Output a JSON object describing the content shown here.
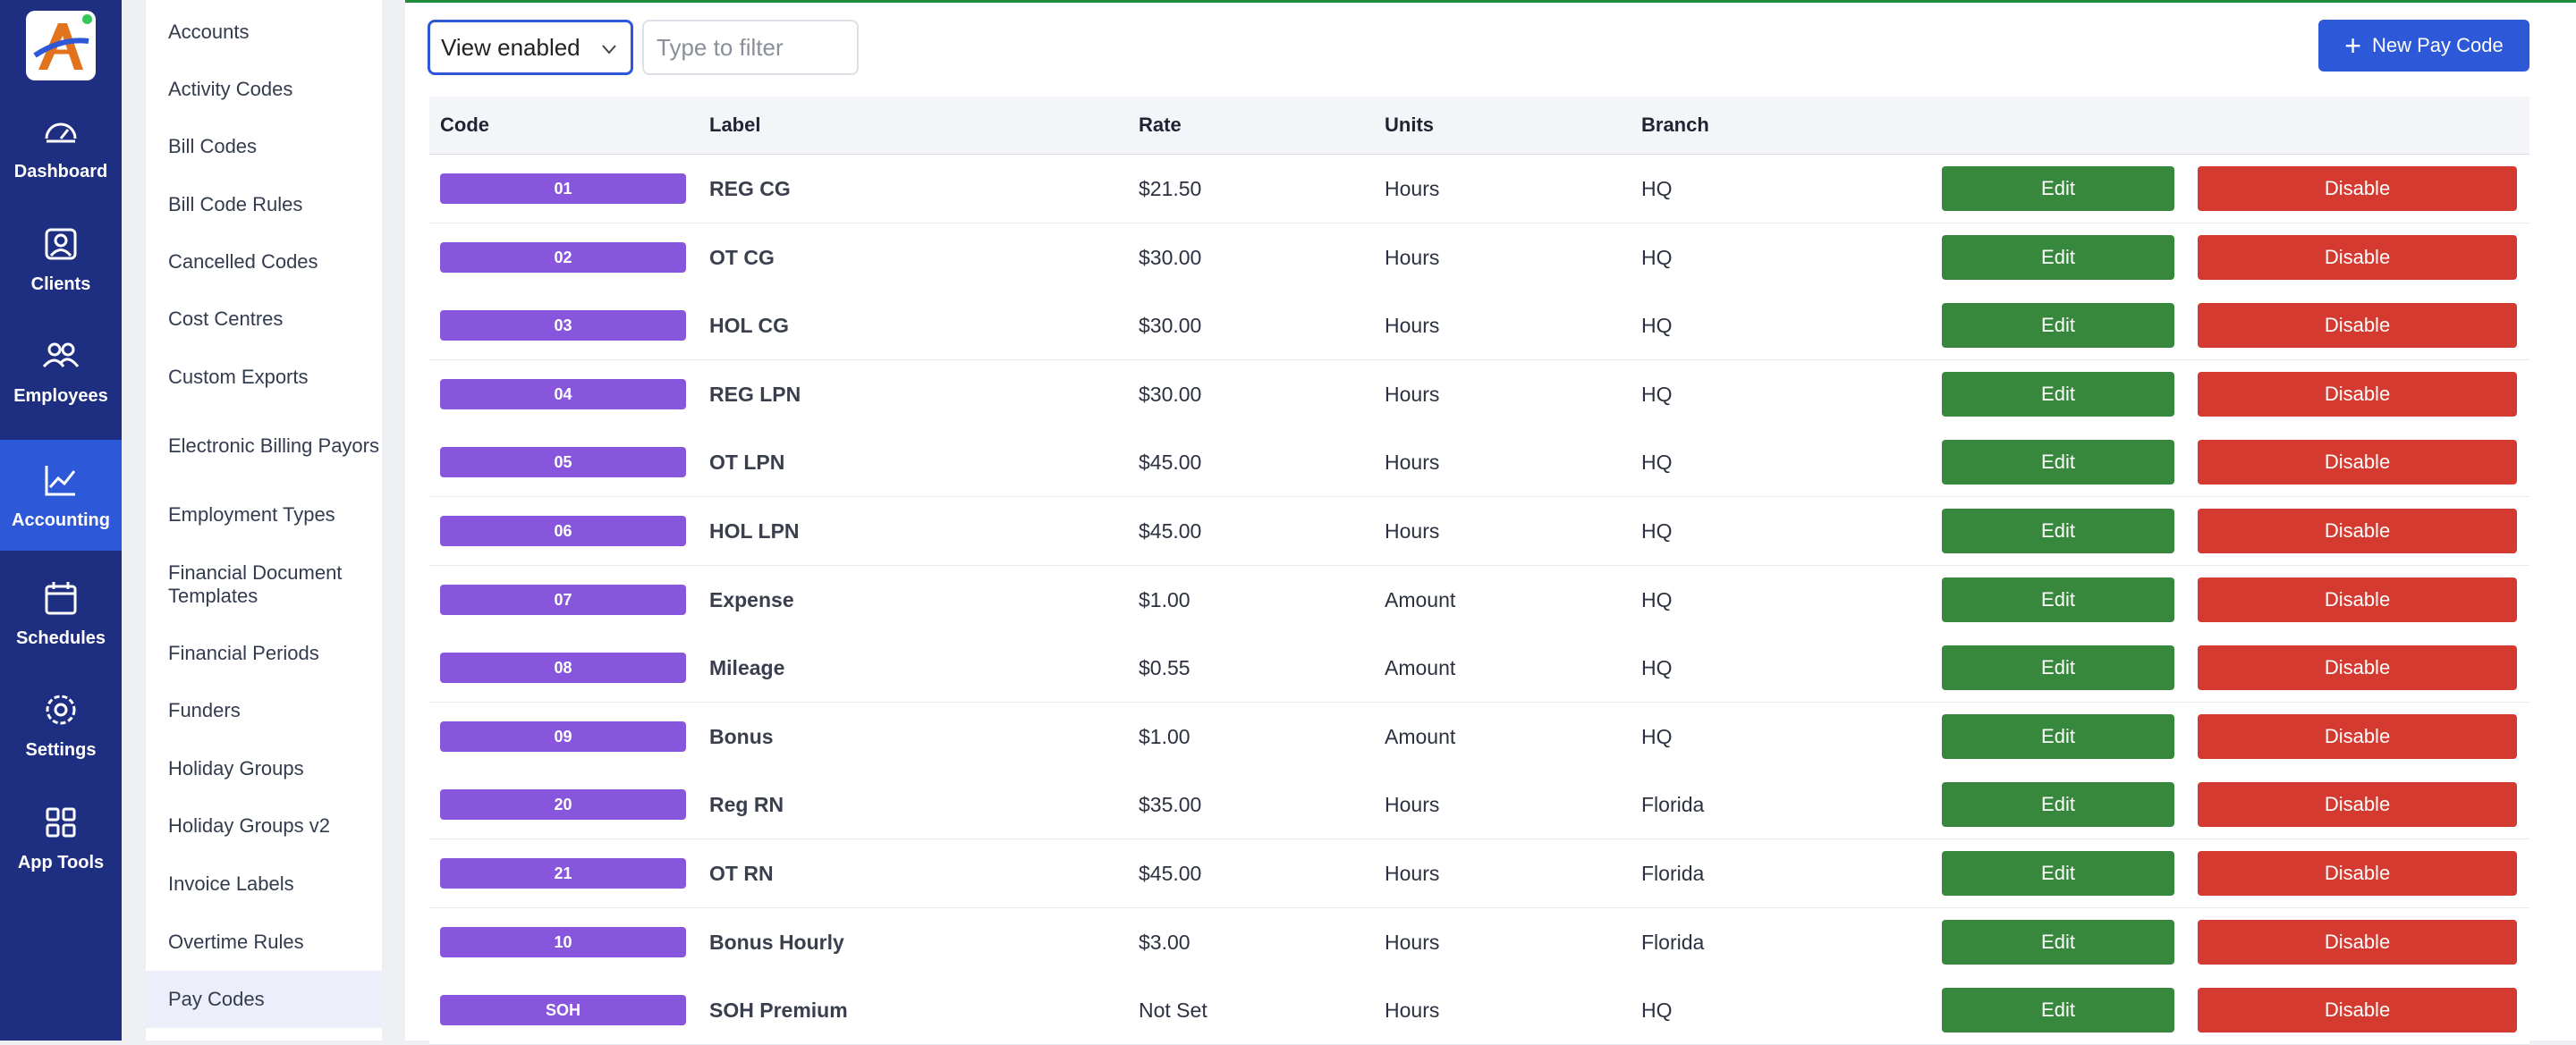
{
  "nav": {
    "items": [
      {
        "label": "Dashboard",
        "icon": "dashboard-icon"
      },
      {
        "label": "Clients",
        "icon": "clients-icon"
      },
      {
        "label": "Employees",
        "icon": "employees-icon"
      },
      {
        "label": "Accounting",
        "icon": "accounting-icon",
        "active": true
      },
      {
        "label": "Schedules",
        "icon": "calendar-icon"
      },
      {
        "label": "Settings",
        "icon": "gear-icon"
      },
      {
        "label": "App Tools",
        "icon": "grid-icon"
      }
    ]
  },
  "submenu": {
    "items": [
      "Accounts",
      "Activity Codes",
      "Bill Codes",
      "Bill Code Rules",
      "Cancelled Codes",
      "Cost Centres",
      "Custom Exports",
      "Electronic Billing Payors",
      "Employment Types",
      "Financial Document Templates",
      "Financial Periods",
      "Funders",
      "Holiday Groups",
      "Holiday Groups v2",
      "Invoice Labels",
      "Overtime Rules",
      "Pay Codes"
    ],
    "active": "Pay Codes"
  },
  "toolbar": {
    "view_select": "View enabled",
    "filter_placeholder": "Type to filter",
    "new_button": "New Pay Code"
  },
  "table": {
    "headers": {
      "code": "Code",
      "label": "Label",
      "rate": "Rate",
      "units": "Units",
      "branch": "Branch"
    },
    "edit_label": "Edit",
    "disable_label": "Disable",
    "rows": [
      {
        "code": "01",
        "label": "REG CG",
        "rate": "$21.50",
        "units": "Hours",
        "branch": "HQ"
      },
      {
        "code": "02",
        "label": "OT CG",
        "rate": "$30.00",
        "units": "Hours",
        "branch": "HQ"
      },
      {
        "code": "03",
        "label": "HOL CG",
        "rate": "$30.00",
        "units": "Hours",
        "branch": "HQ"
      },
      {
        "code": "04",
        "label": "REG LPN",
        "rate": "$30.00",
        "units": "Hours",
        "branch": "HQ"
      },
      {
        "code": "05",
        "label": "OT LPN",
        "rate": "$45.00",
        "units": "Hours",
        "branch": "HQ"
      },
      {
        "code": "06",
        "label": "HOL LPN",
        "rate": "$45.00",
        "units": "Hours",
        "branch": "HQ"
      },
      {
        "code": "07",
        "label": "Expense",
        "rate": "$1.00",
        "units": "Amount",
        "branch": "HQ"
      },
      {
        "code": "08",
        "label": "Mileage",
        "rate": "$0.55",
        "units": "Amount",
        "branch": "HQ"
      },
      {
        "code": "09",
        "label": "Bonus",
        "rate": "$1.00",
        "units": "Amount",
        "branch": "HQ"
      },
      {
        "code": "20",
        "label": "Reg RN",
        "rate": "$35.00",
        "units": "Hours",
        "branch": "Florida"
      },
      {
        "code": "21",
        "label": "OT RN",
        "rate": "$45.00",
        "units": "Hours",
        "branch": "Florida"
      },
      {
        "code": "10",
        "label": "Bonus Hourly",
        "rate": "$3.00",
        "units": "Hours",
        "branch": "Florida"
      },
      {
        "code": "SOH",
        "label": "SOH Premium",
        "rate": "Not Set",
        "units": "Hours",
        "branch": "HQ"
      }
    ]
  },
  "colors": {
    "nav_bg": "#1e2f82",
    "nav_active": "#2d59d9",
    "badge": "#8856dc",
    "edit": "#37883d",
    "disable": "#d43a2f",
    "primary": "#2d59d9"
  }
}
